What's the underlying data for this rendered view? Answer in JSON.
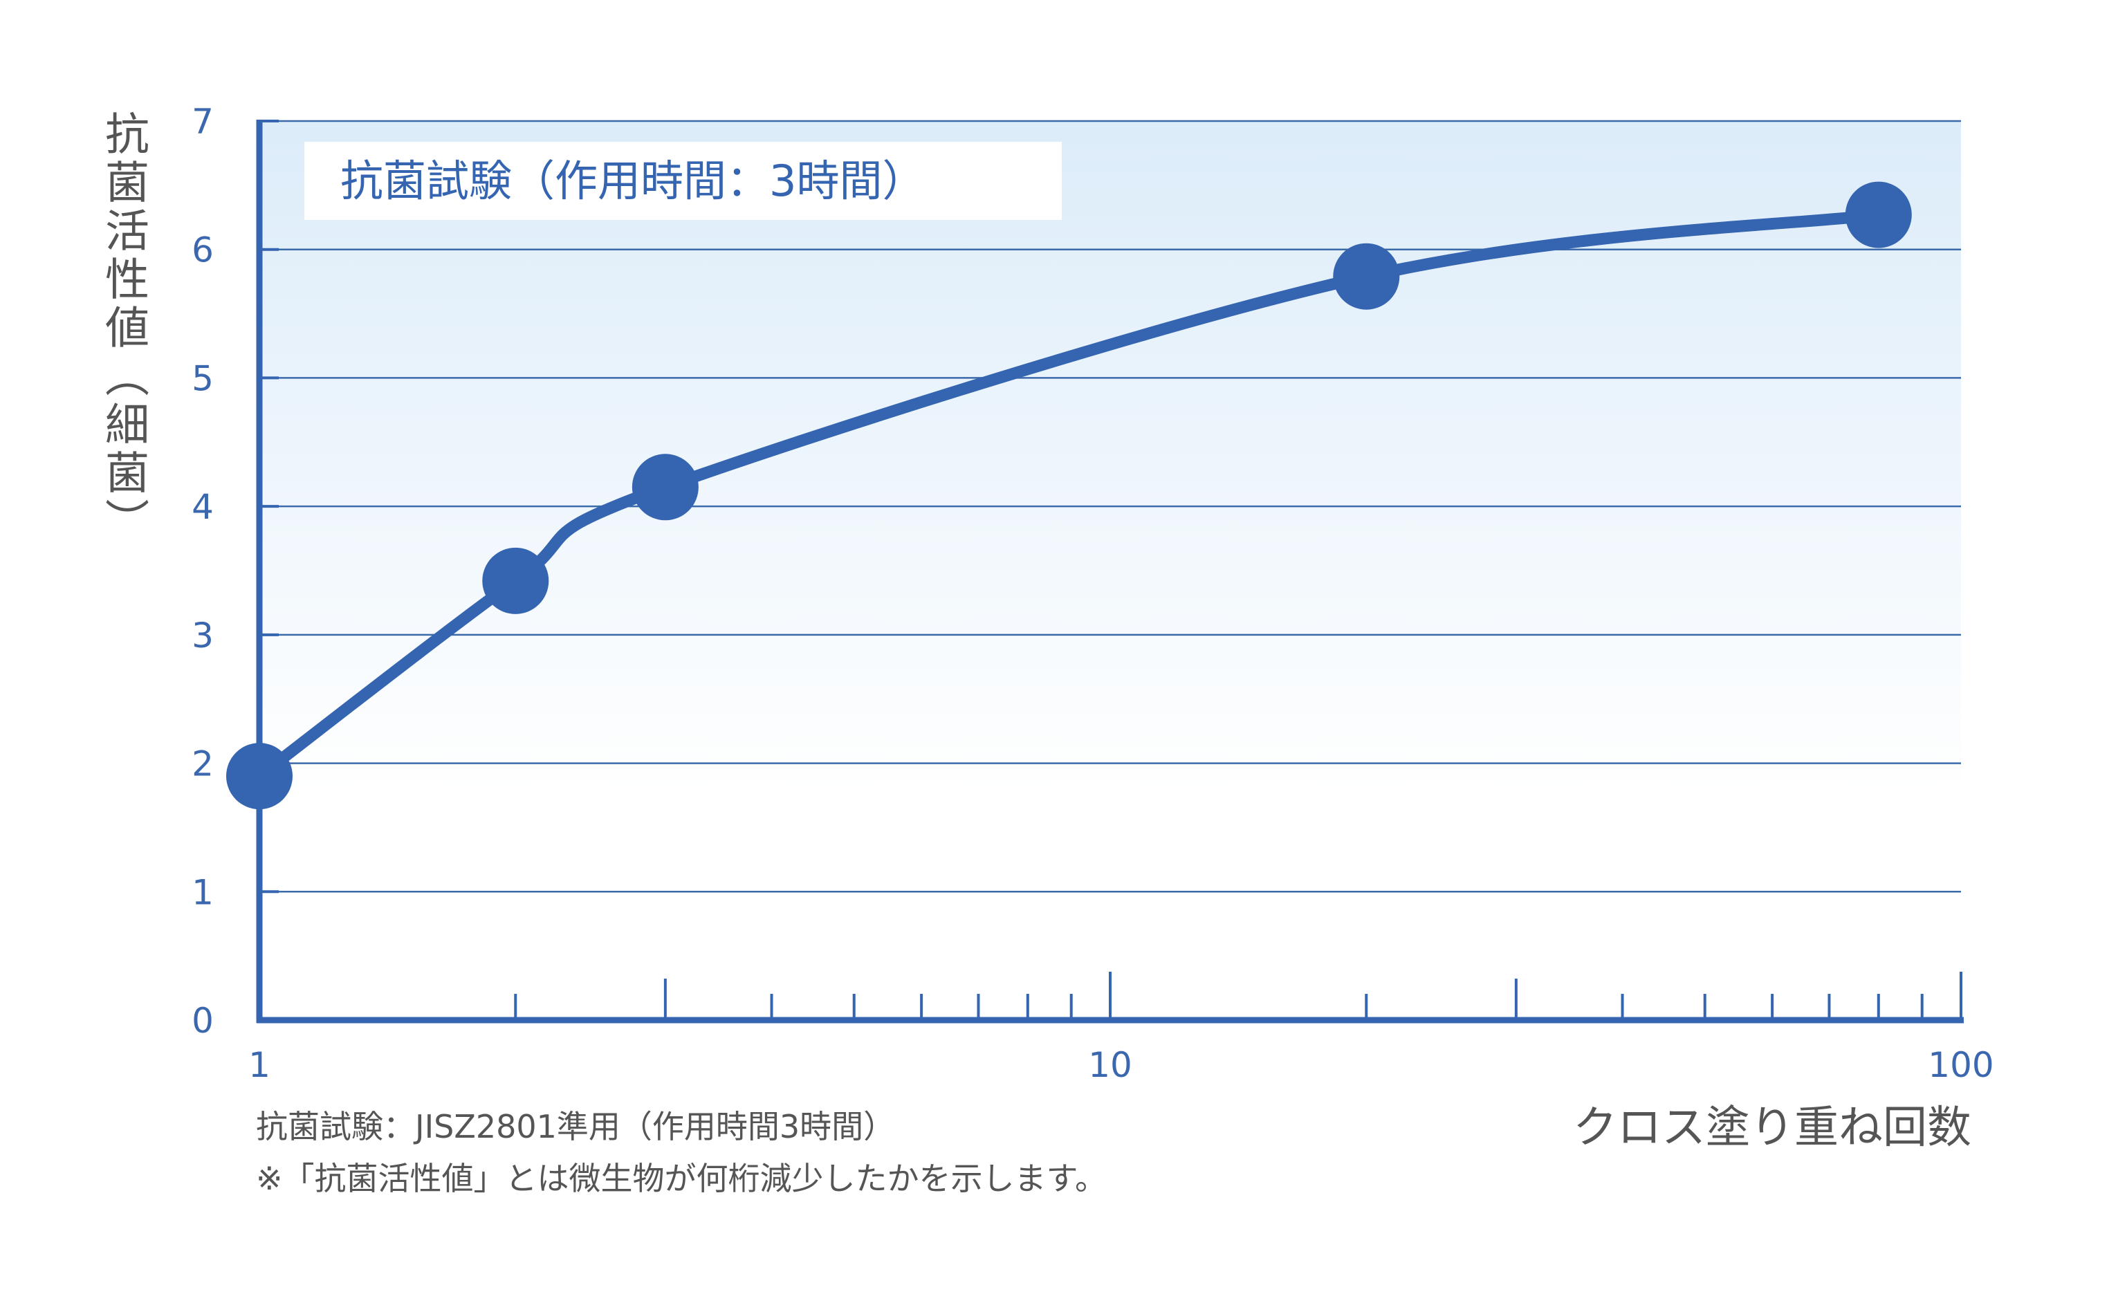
{
  "chart_data": {
    "type": "line",
    "title": "抗菌試験（作用時間：3時間）",
    "ylabel": "抗菌活性値（細菌）",
    "xlabel": "クロス塗り重ね回数",
    "x_scale": "log",
    "xlim": [
      1,
      100
    ],
    "ylim": [
      0,
      7
    ],
    "x_ticks": [
      1,
      10,
      100
    ],
    "x_tick_labels": [
      "1",
      "10",
      "100"
    ],
    "y_ticks": [
      0,
      1,
      2,
      3,
      4,
      5,
      6,
      7
    ],
    "y_tick_labels": [
      "0",
      "1",
      "2",
      "3",
      "4",
      "5",
      "6",
      "7"
    ],
    "grid": true,
    "series": [
      {
        "x": [
          1,
          2,
          3,
          20,
          80
        ],
        "y": [
          1.9,
          3.42,
          4.15,
          5.79,
          6.27
        ],
        "color": "#3565b0"
      }
    ],
    "notes": [
      "抗菌試験：JISZ2801準用（作用時間3時間）",
      "※「抗菌活性値」とは微生物が何桁減少したかを示します。"
    ]
  },
  "colors": {
    "axis": "#3565b0",
    "line": "#3565b0",
    "grid": "#3a6aaa",
    "bg_top": "#dcecf9",
    "text": "#555555"
  }
}
